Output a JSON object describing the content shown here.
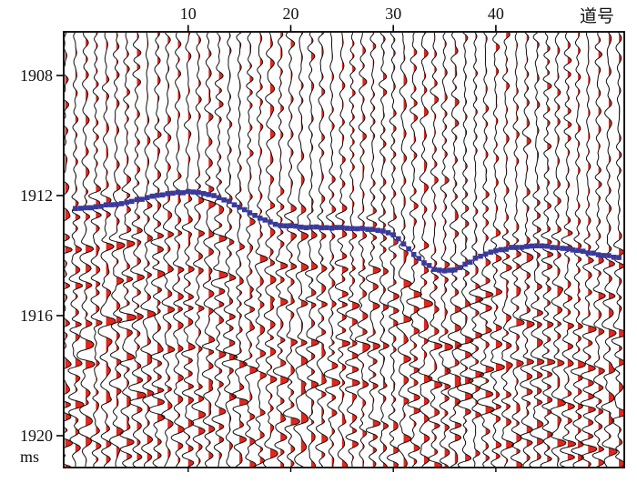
{
  "chart_data": {
    "type": "seismic-wiggle-section",
    "title": "",
    "x_axis": {
      "unit_label": "道号",
      "ticks": [
        10,
        20,
        30,
        40
      ],
      "first_trace": -2,
      "last_trace": 52
    },
    "y_axis": {
      "unit_label": "ms",
      "ticks": [
        1908,
        1912,
        1916,
        1920
      ],
      "range_ms": [
        1906.3,
        1921.3
      ]
    },
    "horizon_pick": {
      "color": "#3a3a9d",
      "underline_color": "#d8401f",
      "start_trace": -1,
      "times_ms": [
        1912.45,
        1912.42,
        1912.38,
        1912.33,
        1912.28,
        1912.22,
        1912.15,
        1912.08,
        1912.0,
        1911.94,
        1911.9,
        1911.88,
        1911.9,
        1911.97,
        1912.07,
        1912.2,
        1912.38,
        1912.58,
        1912.76,
        1912.9,
        1912.98,
        1913.02,
        1913.05,
        1913.06,
        1913.06,
        1913.07,
        1913.07,
        1913.08,
        1913.1,
        1913.12,
        1913.17,
        1913.3,
        1913.6,
        1913.95,
        1914.25,
        1914.45,
        1914.52,
        1914.46,
        1914.3,
        1914.1,
        1913.95,
        1913.85,
        1913.77,
        1913.72,
        1913.69,
        1913.69,
        1913.7,
        1913.73,
        1913.78,
        1913.84,
        1913.9,
        1913.96,
        1914.01,
        1914.06
      ]
    },
    "reflection_events_rel_ms": [
      {
        "dt": -0.38,
        "amp": -4.2
      },
      {
        "dt": 0.28,
        "amp": 5.2
      },
      {
        "dt": 1.35,
        "amp": 6.6
      },
      {
        "dt": 2.55,
        "amp": 7.6
      },
      {
        "dt": 3.85,
        "amp": 8.2
      },
      {
        "dt": 5.2,
        "amp": 7.2
      },
      {
        "dt": 6.5,
        "amp": 6.2
      }
    ],
    "colors": {
      "positive_fill": "#e2261c",
      "wiggle": "#101010",
      "frame": "#000000",
      "background": "#ffffff"
    }
  }
}
